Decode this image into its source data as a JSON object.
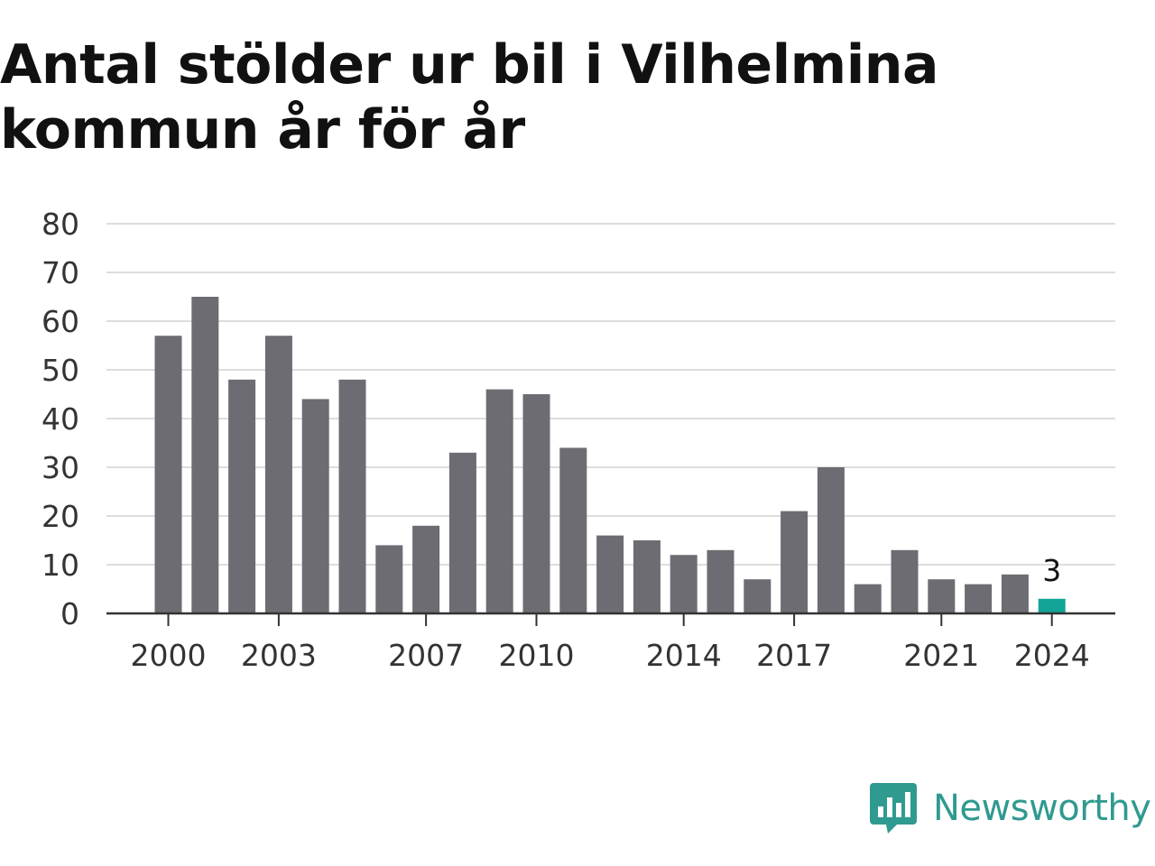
{
  "title": "Antal stölder ur bil i Vilhelmina kommun år för år",
  "brand": {
    "name": "Newsworthy",
    "color": "#2f9a8f",
    "icon": "bar-chart-speech-bubble-icon"
  },
  "colors": {
    "bar": "#6d6c72",
    "highlight": "#12a496",
    "grid": "#dddddd",
    "axis": "#333333"
  },
  "chart_data": {
    "type": "bar",
    "title": "Antal stölder ur bil i Vilhelmina kommun år för år",
    "xlabel": "",
    "ylabel": "",
    "categories": [
      "2000",
      "2001",
      "2002",
      "2003",
      "2004",
      "2005",
      "2006",
      "2007",
      "2008",
      "2009",
      "2010",
      "2011",
      "2012",
      "2013",
      "2014",
      "2015",
      "2016",
      "2017",
      "2018",
      "2019",
      "2020",
      "2021",
      "2022",
      "2023",
      "2024"
    ],
    "values": [
      57,
      65,
      48,
      57,
      44,
      48,
      14,
      18,
      33,
      46,
      45,
      34,
      16,
      15,
      12,
      13,
      7,
      21,
      30,
      6,
      13,
      7,
      6,
      8,
      3
    ],
    "ylim": [
      0,
      80
    ],
    "yticks": [
      0,
      10,
      20,
      30,
      40,
      50,
      60,
      70,
      80
    ],
    "xtick_labels": [
      "2000",
      "2003",
      "2007",
      "2010",
      "2014",
      "2017",
      "2021",
      "2024"
    ],
    "highlight": {
      "category": "2024",
      "label": "3"
    },
    "grid": true,
    "legend": "none"
  }
}
